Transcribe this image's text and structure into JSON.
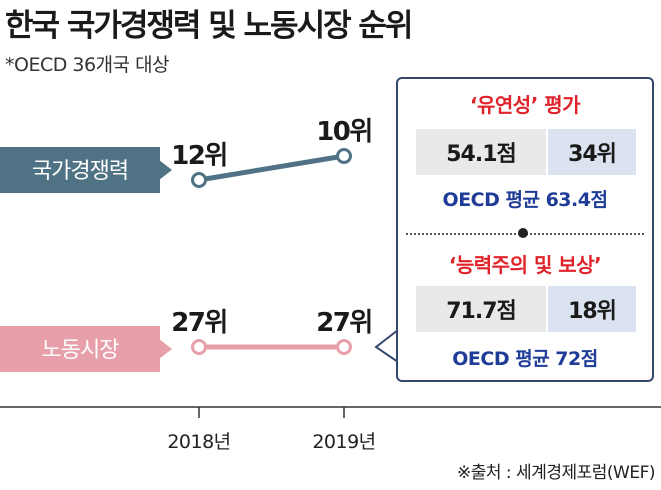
{
  "title": "한국 국가경쟁력 및 노동시장 순위",
  "subtitle": "*OECD 36개국 대상",
  "source": "※출처 : 세계경제포럼(WEF)",
  "colors": {
    "competitiveness": "#4f7384",
    "labor": "#e7a0aa",
    "accent_red": "#e0232a",
    "accent_blue": "#1f3c96"
  },
  "chart_data": {
    "type": "line",
    "categories": [
      "2018년",
      "2019년"
    ],
    "series": [
      {
        "name": "국가경쟁력",
        "values": [
          12,
          10
        ],
        "labels": [
          "12위",
          "10위"
        ]
      },
      {
        "name": "노동시장",
        "values": [
          27,
          27
        ],
        "labels": [
          "27위",
          "27위"
        ]
      }
    ]
  },
  "panel": {
    "flex": {
      "title": "‘유연성’ 평가",
      "score": "54.1점",
      "rank": "34위",
      "avg": "OECD 평균 63.4점"
    },
    "merit": {
      "title": "‘능력주의 및 보상’",
      "score": "71.7점",
      "rank": "18위",
      "avg": "OECD 평균 72점"
    }
  }
}
